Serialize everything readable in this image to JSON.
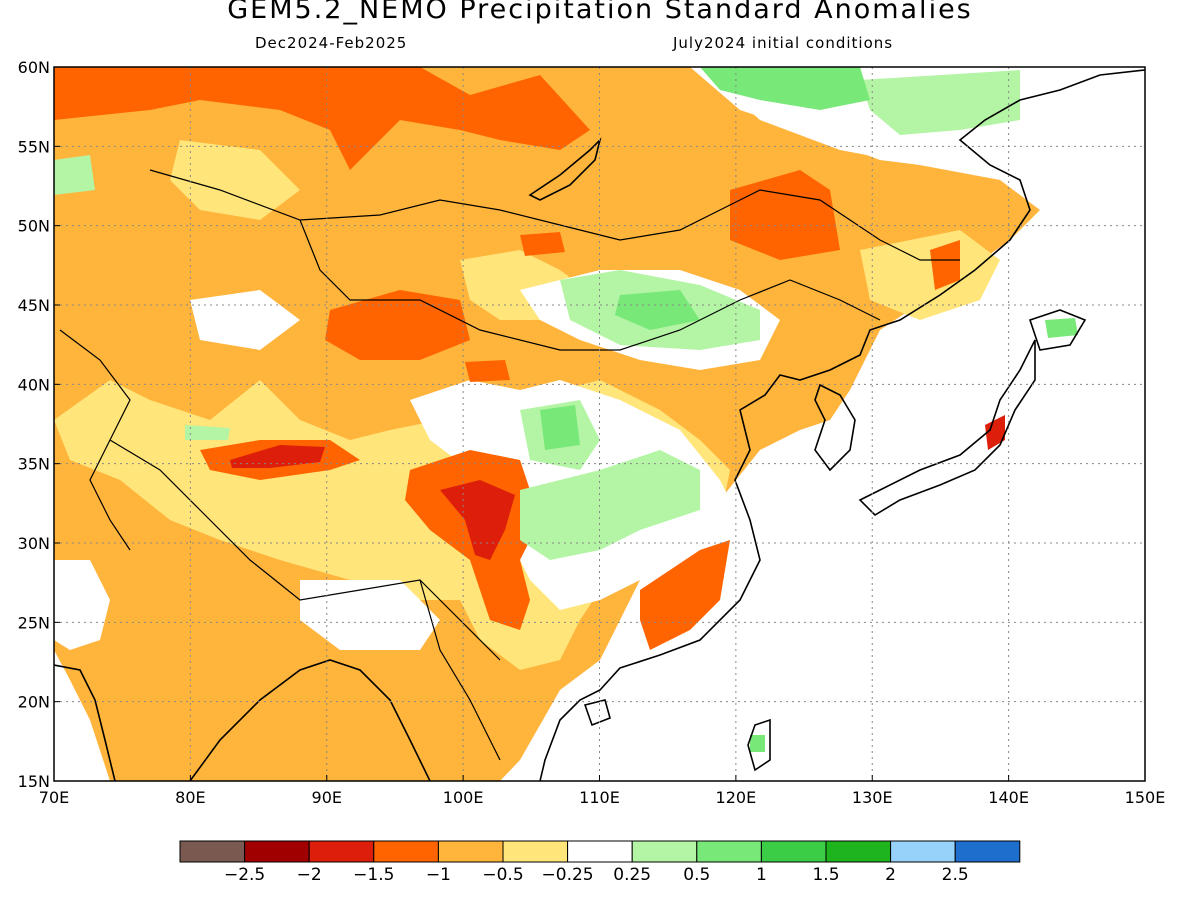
{
  "title": "GEM5.2_NEMO Precipitation Standard Anomalies",
  "subtitle_left": "Dec2024-Feb2025",
  "subtitle_right": "July2024 initial conditions",
  "map": {
    "lon_range": [
      70,
      150
    ],
    "lat_range": [
      15,
      60
    ],
    "lon_ticks": [
      "70E",
      "80E",
      "90E",
      "100E",
      "110E",
      "120E",
      "130E",
      "140E",
      "150E"
    ],
    "lat_ticks": [
      "15N",
      "20N",
      "25N",
      "30N",
      "35N",
      "40N",
      "45N",
      "50N",
      "55N",
      "60N"
    ]
  },
  "colorbar": {
    "colors": [
      "#7a5a50",
      "#a00000",
      "#dc1e0a",
      "#ff6400",
      "#ffb43c",
      "#ffe57a",
      "#ffffff",
      "#b4f5a5",
      "#78e878",
      "#3ccd46",
      "#1eb41e",
      "#96d2fa",
      "#1e6ecd"
    ],
    "labels": [
      "−2.5",
      "−2",
      "−1.5",
      "−1",
      "−0.5",
      "−0.25",
      "0.25",
      "0.5",
      "1",
      "1.5",
      "2",
      "2.5"
    ]
  }
}
